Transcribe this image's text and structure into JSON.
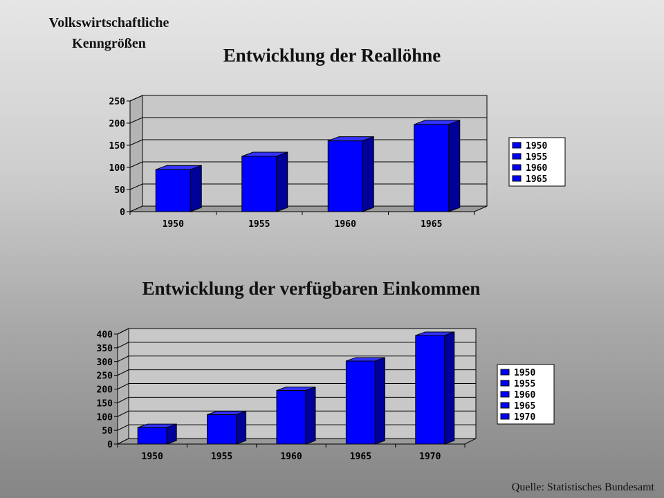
{
  "header": {
    "line1": "Volkswirtschaftliche",
    "line2": "Kenngrößen"
  },
  "source": "Quelle: Statistisches Bundesamt",
  "colors": {
    "bar_front": "#0000ff",
    "bar_side": "#00009a",
    "bar_top": "#3333ff",
    "plot_bg": "#c8c8c8"
  },
  "chart_data": [
    {
      "type": "bar",
      "title": "Entwicklung der Reallöhne",
      "categories": [
        "1950",
        "1955",
        "1960",
        "1965"
      ],
      "values": [
        95,
        125,
        160,
        197
      ],
      "legend": [
        "1950",
        "1955",
        "1960",
        "1965"
      ],
      "legend_position": "right",
      "ylim": [
        0,
        250
      ],
      "yticks": [
        "0",
        "50",
        "100",
        "150",
        "200",
        "250"
      ],
      "grid": true,
      "style": "3d"
    },
    {
      "type": "bar",
      "title": "Entwicklung der verfügbaren Einkommen",
      "categories": [
        "1950",
        "1955",
        "1960",
        "1965",
        "1970"
      ],
      "values": [
        60,
        107,
        195,
        302,
        395
      ],
      "legend": [
        "1950",
        "1955",
        "1960",
        "1965",
        "1970"
      ],
      "legend_position": "right",
      "ylim": [
        0,
        400
      ],
      "yticks": [
        "0",
        "50",
        "100",
        "150",
        "200",
        "250",
        "300",
        "350",
        "400"
      ],
      "grid": true,
      "style": "3d"
    }
  ]
}
